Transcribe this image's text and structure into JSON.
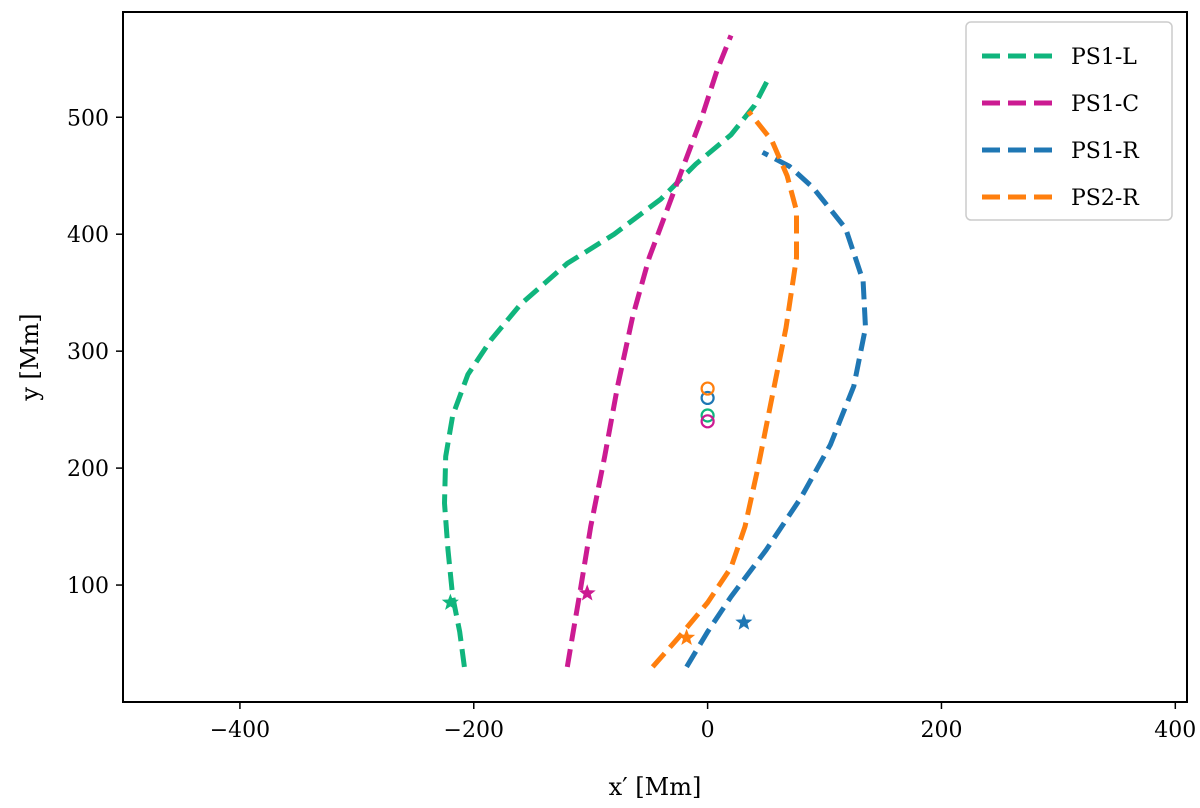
{
  "chart_data": {
    "type": "line",
    "xlabel": "x′ [Mm]",
    "ylabel": "y [Mm]",
    "xlim": [
      -500,
      410
    ],
    "ylim": [
      0,
      590
    ],
    "xticks": [
      -400,
      -200,
      0,
      200,
      400
    ],
    "yticks": [
      100,
      200,
      300,
      400,
      500
    ],
    "grid": false,
    "legend_position": "top-right",
    "series": [
      {
        "name": "PS1-L",
        "color": "#10b57d",
        "points": [
          [
            -208,
            30
          ],
          [
            -212,
            60
          ],
          [
            -218,
            90
          ],
          [
            -222,
            130
          ],
          [
            -225,
            170
          ],
          [
            -224,
            210
          ],
          [
            -218,
            245
          ],
          [
            -205,
            280
          ],
          [
            -185,
            310
          ],
          [
            -160,
            340
          ],
          [
            -120,
            375
          ],
          [
            -80,
            400
          ],
          [
            -40,
            430
          ],
          [
            -10,
            460
          ],
          [
            20,
            485
          ],
          [
            40,
            510
          ],
          [
            53,
            535
          ]
        ],
        "star": [
          -220,
          85
        ],
        "circle": [
          0,
          245
        ]
      },
      {
        "name": "PS1-C",
        "color": "#cc1b92",
        "points": [
          [
            -120,
            30
          ],
          [
            -115,
            60
          ],
          [
            -109,
            95
          ],
          [
            -100,
            150
          ],
          [
            -88,
            210
          ],
          [
            -77,
            270
          ],
          [
            -64,
            330
          ],
          [
            -50,
            380
          ],
          [
            -35,
            420
          ],
          [
            -20,
            460
          ],
          [
            -5,
            500
          ],
          [
            8,
            540
          ],
          [
            20,
            570
          ]
        ],
        "star": [
          -103,
          93
        ],
        "circle": [
          0,
          240
        ]
      },
      {
        "name": "PS1-R",
        "color": "#1f77b4",
        "points": [
          [
            -18,
            30
          ],
          [
            0,
            60
          ],
          [
            20,
            90
          ],
          [
            50,
            130
          ],
          [
            80,
            175
          ],
          [
            105,
            220
          ],
          [
            125,
            270
          ],
          [
            135,
            320
          ],
          [
            133,
            360
          ],
          [
            118,
            405
          ],
          [
            90,
            440
          ],
          [
            70,
            458
          ],
          [
            47,
            470
          ]
        ],
        "star": [
          31,
          68
        ],
        "circle": [
          0,
          260
        ]
      },
      {
        "name": "PS2-R",
        "color": "#ff7f0e",
        "points": [
          [
            -47,
            30
          ],
          [
            -25,
            55
          ],
          [
            0,
            85
          ],
          [
            20,
            115
          ],
          [
            32,
            150
          ],
          [
            43,
            200
          ],
          [
            55,
            260
          ],
          [
            67,
            320
          ],
          [
            76,
            380
          ],
          [
            76,
            420
          ],
          [
            68,
            450
          ],
          [
            55,
            480
          ],
          [
            35,
            505
          ]
        ],
        "star": [
          -18,
          55
        ],
        "circle": [
          0,
          268
        ]
      }
    ]
  }
}
